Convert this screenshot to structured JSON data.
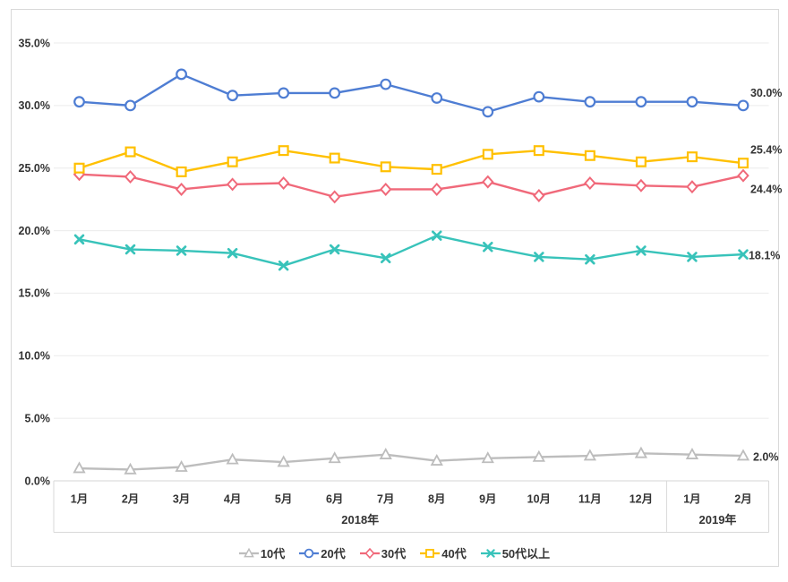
{
  "chart_data": {
    "type": "line",
    "title": "",
    "legend_position": "bottom",
    "grid": true,
    "x_axis": {
      "categories": [
        "1月",
        "2月",
        "3月",
        "4月",
        "5月",
        "6月",
        "7月",
        "8月",
        "9月",
        "10月",
        "11月",
        "12月",
        "1月",
        "2月"
      ],
      "year_groups": [
        {
          "label": "2018年",
          "span": 12
        },
        {
          "label": "2019年",
          "span": 2
        }
      ]
    },
    "y_axis": {
      "min": 0,
      "max": 35,
      "step": 5,
      "ticks": [
        "0.0%",
        "5.0%",
        "10.0%",
        "15.0%",
        "20.0%",
        "25.0%",
        "30.0%",
        "35.0%"
      ]
    },
    "series": [
      {
        "id": "10s",
        "name": "10代",
        "marker": "triangle",
        "color": "#BDBDBD",
        "end_label": "2.0%",
        "values": [
          1.0,
          0.9,
          1.1,
          1.7,
          1.5,
          1.8,
          2.1,
          1.6,
          1.8,
          1.9,
          2.0,
          2.2,
          2.1,
          2.0
        ]
      },
      {
        "id": "20s",
        "name": "20代",
        "marker": "circle",
        "color": "#4E7DD3",
        "end_label": "30.0%",
        "values": [
          30.3,
          30.0,
          32.5,
          30.8,
          31.0,
          31.0,
          31.7,
          30.6,
          29.5,
          30.7,
          30.3,
          30.3,
          30.3,
          30.0
        ]
      },
      {
        "id": "30s",
        "name": "30代",
        "marker": "diamond",
        "color": "#F0697A",
        "end_label": "24.4%",
        "values": [
          24.5,
          24.3,
          23.3,
          23.7,
          23.8,
          22.7,
          23.3,
          23.3,
          23.9,
          22.8,
          23.8,
          23.6,
          23.5,
          24.4
        ]
      },
      {
        "id": "40s",
        "name": "40代",
        "marker": "square",
        "color": "#FFC000",
        "end_label": "25.4%",
        "values": [
          25.0,
          26.3,
          24.7,
          25.5,
          26.4,
          25.8,
          25.1,
          24.9,
          26.1,
          26.4,
          26.0,
          25.5,
          25.9,
          25.4
        ]
      },
      {
        "id": "50s-plus",
        "name": "50代以上",
        "marker": "x",
        "color": "#38C3BA",
        "end_label": "18.1%",
        "values": [
          19.3,
          18.5,
          18.4,
          18.2,
          17.2,
          18.5,
          17.8,
          19.6,
          18.7,
          17.9,
          17.7,
          18.4,
          17.9,
          18.1
        ]
      }
    ]
  },
  "colors": {
    "frame_border": "#D9D9D9",
    "gridline": "#EBEBEB",
    "axis_line": "#D6D6D6",
    "divider": "#D9D9D9",
    "text": "#333333",
    "background": "#FFFFFF"
  }
}
